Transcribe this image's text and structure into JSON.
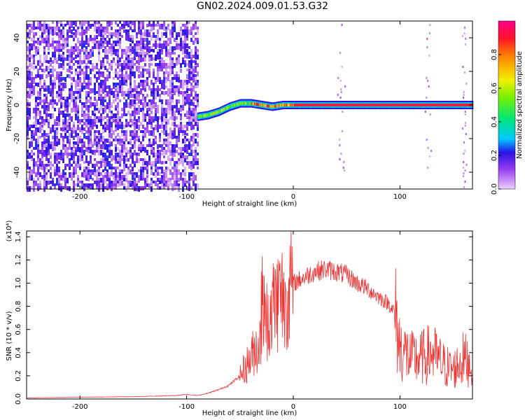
{
  "title": "GN02.2024.009.01.53.G32",
  "chart_data": [
    {
      "type": "heatmap",
      "xlabel": "Height of straight line (km)",
      "ylabel": "Frequency (Hz)",
      "xlim": [
        -250,
        168
      ],
      "ylim": [
        -50,
        50
      ],
      "xticks": [
        -200,
        -100,
        0,
        100
      ],
      "yticks": [
        -40,
        -20,
        0,
        20,
        40
      ],
      "colorbar": {
        "label": "Normalized spectral amplitude",
        "range": [
          0.0,
          1.0
        ],
        "ticks": [
          "0.0",
          "0.2",
          "0.4",
          "0.6",
          "0.8"
        ]
      },
      "features": [
        {
          "desc": "broadband noise",
          "x_range": [
            -250,
            -90
          ],
          "amplitude": 0.2
        },
        {
          "desc": "signal track",
          "x": [
            -90,
            -80,
            -70,
            -60,
            -50,
            -40,
            -30,
            -20,
            -10,
            0,
            168
          ],
          "y": [
            -7,
            -6,
            -4,
            -1,
            1,
            1,
            0,
            -1,
            0,
            0,
            0
          ]
        }
      ]
    },
    {
      "type": "line",
      "xlabel": "Height of straight line (km)",
      "ylabel": "SNR (10 * v/v)",
      "yscale_label": "(x10⁴)",
      "xlim": [
        -250,
        168
      ],
      "ylim": [
        0,
        1.45
      ],
      "xticks": [
        -200,
        -100,
        0,
        100
      ],
      "yticks": [
        "0.0",
        "0.2",
        "0.4",
        "0.6",
        "0.8",
        "1.0",
        "1.2",
        "1.4"
      ],
      "color": "#ee3333",
      "series": [
        {
          "x": [
            -250,
            -200,
            -150,
            -110,
            -100,
            -90,
            -80,
            -70,
            -60,
            -50,
            -40,
            -35,
            -30,
            -25,
            -20,
            -15,
            -10,
            -5,
            0,
            10,
            20,
            30,
            40,
            50,
            60,
            70,
            80,
            90,
            95,
            100,
            110,
            120,
            130,
            140,
            150,
            160,
            168
          ],
          "y": [
            0.01,
            0.015,
            0.02,
            0.03,
            0.04,
            0.03,
            0.05,
            0.08,
            0.12,
            0.2,
            0.35,
            0.45,
            0.5,
            0.7,
            0.8,
            0.85,
            0.9,
            0.95,
            1.0,
            1.05,
            1.1,
            1.12,
            1.1,
            1.07,
            1.0,
            0.95,
            0.88,
            0.82,
            0.75,
            0.45,
            0.35,
            0.35,
            0.4,
            0.3,
            0.25,
            0.35,
            0.3
          ]
        }
      ]
    }
  ]
}
